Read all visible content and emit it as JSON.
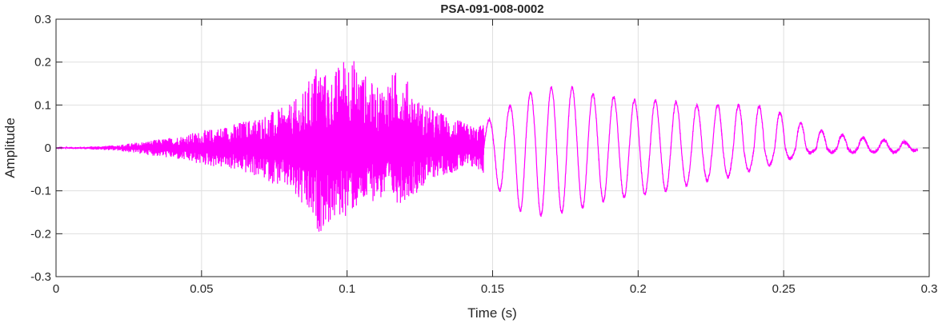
{
  "chart_data": {
    "type": "line",
    "title": "PSA-091-008-0002",
    "xlabel": "Time (s)",
    "ylabel": "Amplitude",
    "xlim": [
      0,
      0.3
    ],
    "ylim": [
      -0.3,
      0.3
    ],
    "grid": true,
    "line_color": "#ff00ff",
    "xticks": [
      0,
      0.05,
      0.1,
      0.15,
      0.2,
      0.25,
      0.3
    ],
    "xtick_labels": [
      "0",
      "0.05",
      "0.1",
      "0.15",
      "0.2",
      "0.25",
      "0.3"
    ],
    "yticks": [
      -0.3,
      -0.2,
      -0.1,
      0,
      0.1,
      0.2,
      0.3
    ],
    "ytick_labels": [
      "-0.3",
      "-0.2",
      "-0.1",
      "0",
      "0.1",
      "0.2",
      "0.3"
    ],
    "series": [
      {
        "x": [
          0,
          0.01,
          0.02,
          0.03,
          0.04,
          0.05,
          0.06,
          0.07,
          0.08,
          0.085,
          0.09,
          0.094,
          0.1,
          0.11,
          0.118,
          0.125,
          0.13,
          0.14,
          0.145,
          0.15,
          0.155,
          0.16,
          0.165,
          0.17,
          0.175,
          0.18,
          0.19,
          0.2,
          0.21,
          0.22,
          0.23,
          0.24,
          0.25,
          0.255,
          0.26,
          0.27,
          0.28,
          0.29,
          0.296
        ],
        "upper": [
          0.002,
          0.003,
          0.006,
          0.015,
          0.025,
          0.04,
          0.055,
          0.075,
          0.1,
          0.13,
          0.21,
          0.16,
          0.23,
          0.14,
          0.19,
          0.11,
          0.09,
          0.06,
          0.05,
          0.07,
          0.09,
          0.13,
          0.13,
          0.14,
          0.15,
          0.13,
          0.12,
          0.11,
          0.11,
          0.1,
          0.1,
          0.1,
          0.08,
          0.06,
          0.045,
          0.03,
          0.02,
          0.015,
          0.01
        ],
        "lower": [
          -0.002,
          -0.003,
          -0.006,
          -0.015,
          -0.025,
          -0.04,
          -0.05,
          -0.07,
          -0.1,
          -0.15,
          -0.2,
          -0.18,
          -0.16,
          -0.12,
          -0.13,
          -0.1,
          -0.07,
          -0.05,
          -0.05,
          -0.08,
          -0.12,
          -0.15,
          -0.16,
          -0.15,
          -0.15,
          -0.14,
          -0.12,
          -0.11,
          -0.1,
          -0.08,
          -0.07,
          -0.05,
          -0.03,
          -0.02,
          -0.01,
          -0.01,
          -0.01,
          -0.01,
          -0.005
        ]
      }
    ]
  }
}
